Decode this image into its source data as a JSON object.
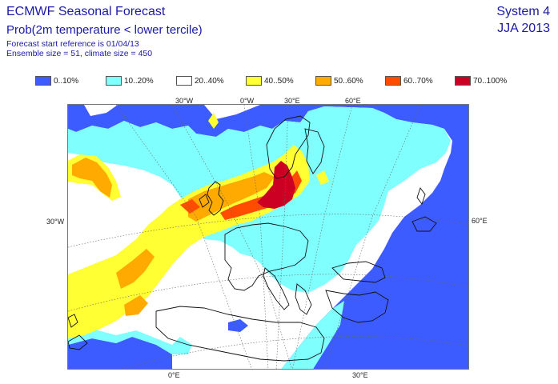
{
  "header": {
    "title": "ECMWF Seasonal Forecast",
    "subtitle": "Prob(2m temperature < lower tercile)",
    "forecast_start": "Forecast start reference is 01/04/13",
    "ensemble": "Ensemble size = 51, climate size = 450",
    "system": "System 4",
    "season": "JJA 2013"
  },
  "legend": [
    {
      "label": "0..10%",
      "color": "#3d5cff"
    },
    {
      "label": "10..20%",
      "color": "#80ffff"
    },
    {
      "label": "20..40%",
      "color": "#ffffff"
    },
    {
      "label": "40..50%",
      "color": "#ffff33"
    },
    {
      "label": "50..60%",
      "color": "#ffaa00"
    },
    {
      "label": "60..70%",
      "color": "#ff4c00"
    },
    {
      "label": "70..100%",
      "color": "#cc0022"
    }
  ],
  "graticule_labels": {
    "top_30w": "30°W",
    "top_0w": "0°W",
    "top_30e": "30°E",
    "top_60e": "60°E",
    "left_30w": "30°W",
    "right_60e": "60°E",
    "bottom_0e": "0°E",
    "bottom_30e": "30°E"
  }
}
